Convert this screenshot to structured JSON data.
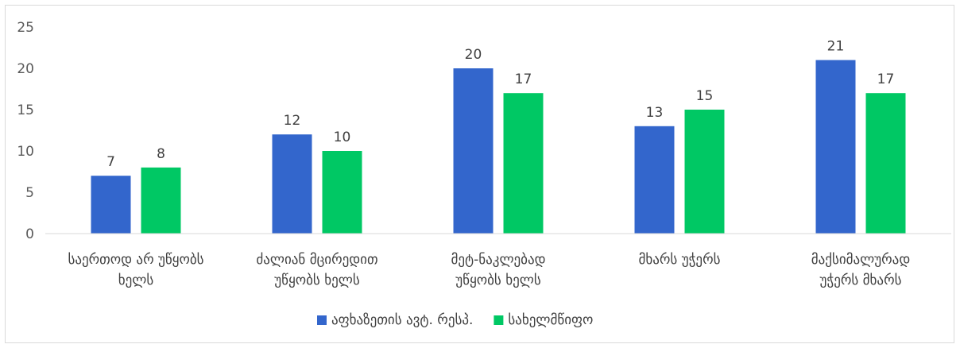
{
  "chart_data": {
    "type": "bar",
    "categories": [
      [
        "საერთოდ არ უწყობს",
        "ხელს"
      ],
      [
        "ძალიან მცირედით",
        "უწყობს ხელს"
      ],
      [
        "მეტ-ნაკლებად",
        "უწყობს ხელს"
      ],
      [
        "მხარს უჭერს"
      ],
      [
        "მაქსიმალურად",
        "უჭერს მხარს"
      ]
    ],
    "series": [
      {
        "name": "აფხაზეთის ავტ. რესპ.",
        "values": [
          7,
          12,
          20,
          13,
          21
        ],
        "color": "#3366cc"
      },
      {
        "name": "სახელმწიფო",
        "values": [
          8,
          10,
          17,
          15,
          17
        ],
        "color": "#00c864"
      }
    ],
    "ylim": [
      0,
      25
    ],
    "yticks": [
      0,
      5,
      10,
      15,
      20,
      25
    ],
    "grid": false,
    "legend_position": "bottom",
    "data_labels": true,
    "title": "",
    "xlabel": "",
    "ylabel": ""
  }
}
